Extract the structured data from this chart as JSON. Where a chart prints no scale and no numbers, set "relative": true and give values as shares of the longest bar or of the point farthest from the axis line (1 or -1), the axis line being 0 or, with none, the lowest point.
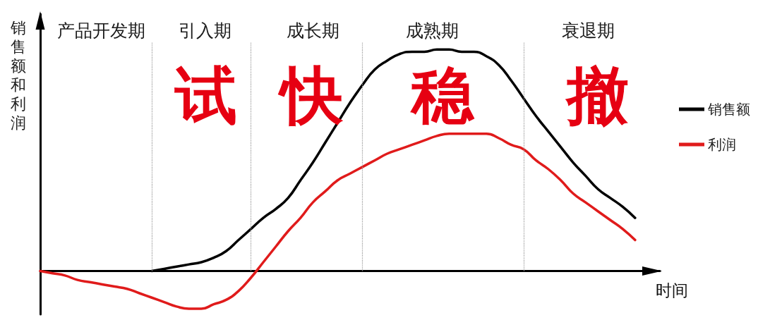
{
  "chart_data": {
    "type": "line",
    "relative": true,
    "xlabel": "时间",
    "ylabel": "销售额和利润",
    "grid": "x",
    "legend": "right",
    "marker": "none",
    "line_style": "solid",
    "categories": [
      null,
      null,
      null,
      null,
      null,
      null,
      null,
      null,
      null,
      null,
      null,
      null,
      null,
      null,
      null,
      null,
      null,
      null,
      null,
      null,
      null,
      null,
      null,
      null,
      null,
      null,
      null,
      null,
      null,
      null,
      null,
      null,
      null,
      null,
      null,
      null,
      null,
      null,
      null,
      null,
      null,
      null,
      null,
      null,
      null,
      null,
      null,
      null,
      null,
      null,
      null
    ],
    "series": [
      {
        "name": "销售额",
        "color": "#000000",
        "values": [
          null,
          null,
          null,
          null,
          null,
          null,
          null,
          null,
          null,
          0,
          0.01,
          0.02,
          0.03,
          0.04,
          0.06,
          0.09,
          0.14,
          0.19,
          0.24,
          0.28,
          0.33,
          0.41,
          0.49,
          0.58,
          0.67,
          0.76,
          0.84,
          0.91,
          0.95,
          0.98,
          0.99,
          0.99,
          1.0,
          1.0,
          0.99,
          0.99,
          0.97,
          0.93,
          0.86,
          0.78,
          0.7,
          0.63,
          0.56,
          0.49,
          0.43,
          0.37,
          0.33,
          0.29,
          0.24,
          null,
          null
        ]
      },
      {
        "name": "利润",
        "color": "#e01b1b",
        "values": [
          0,
          -0.01,
          -0.02,
          -0.04,
          -0.05,
          -0.06,
          -0.07,
          -0.08,
          -0.1,
          -0.12,
          -0.14,
          -0.16,
          -0.17,
          -0.17,
          -0.15,
          -0.13,
          -0.09,
          -0.03,
          0.04,
          0.11,
          0.18,
          0.24,
          0.31,
          0.36,
          0.41,
          0.44,
          0.47,
          0.5,
          0.53,
          0.55,
          0.57,
          0.59,
          0.61,
          0.62,
          0.62,
          0.62,
          0.62,
          0.6,
          0.57,
          0.55,
          0.5,
          0.46,
          0.41,
          0.35,
          0.31,
          0.27,
          0.23,
          0.19,
          0.14,
          null,
          null
        ]
      }
    ],
    "annotations": [
      "产品开发期",
      "引入期",
      "成长期",
      "成熟期",
      "衰退期",
      "试",
      "快",
      "稳",
      "撤"
    ]
  }
}
